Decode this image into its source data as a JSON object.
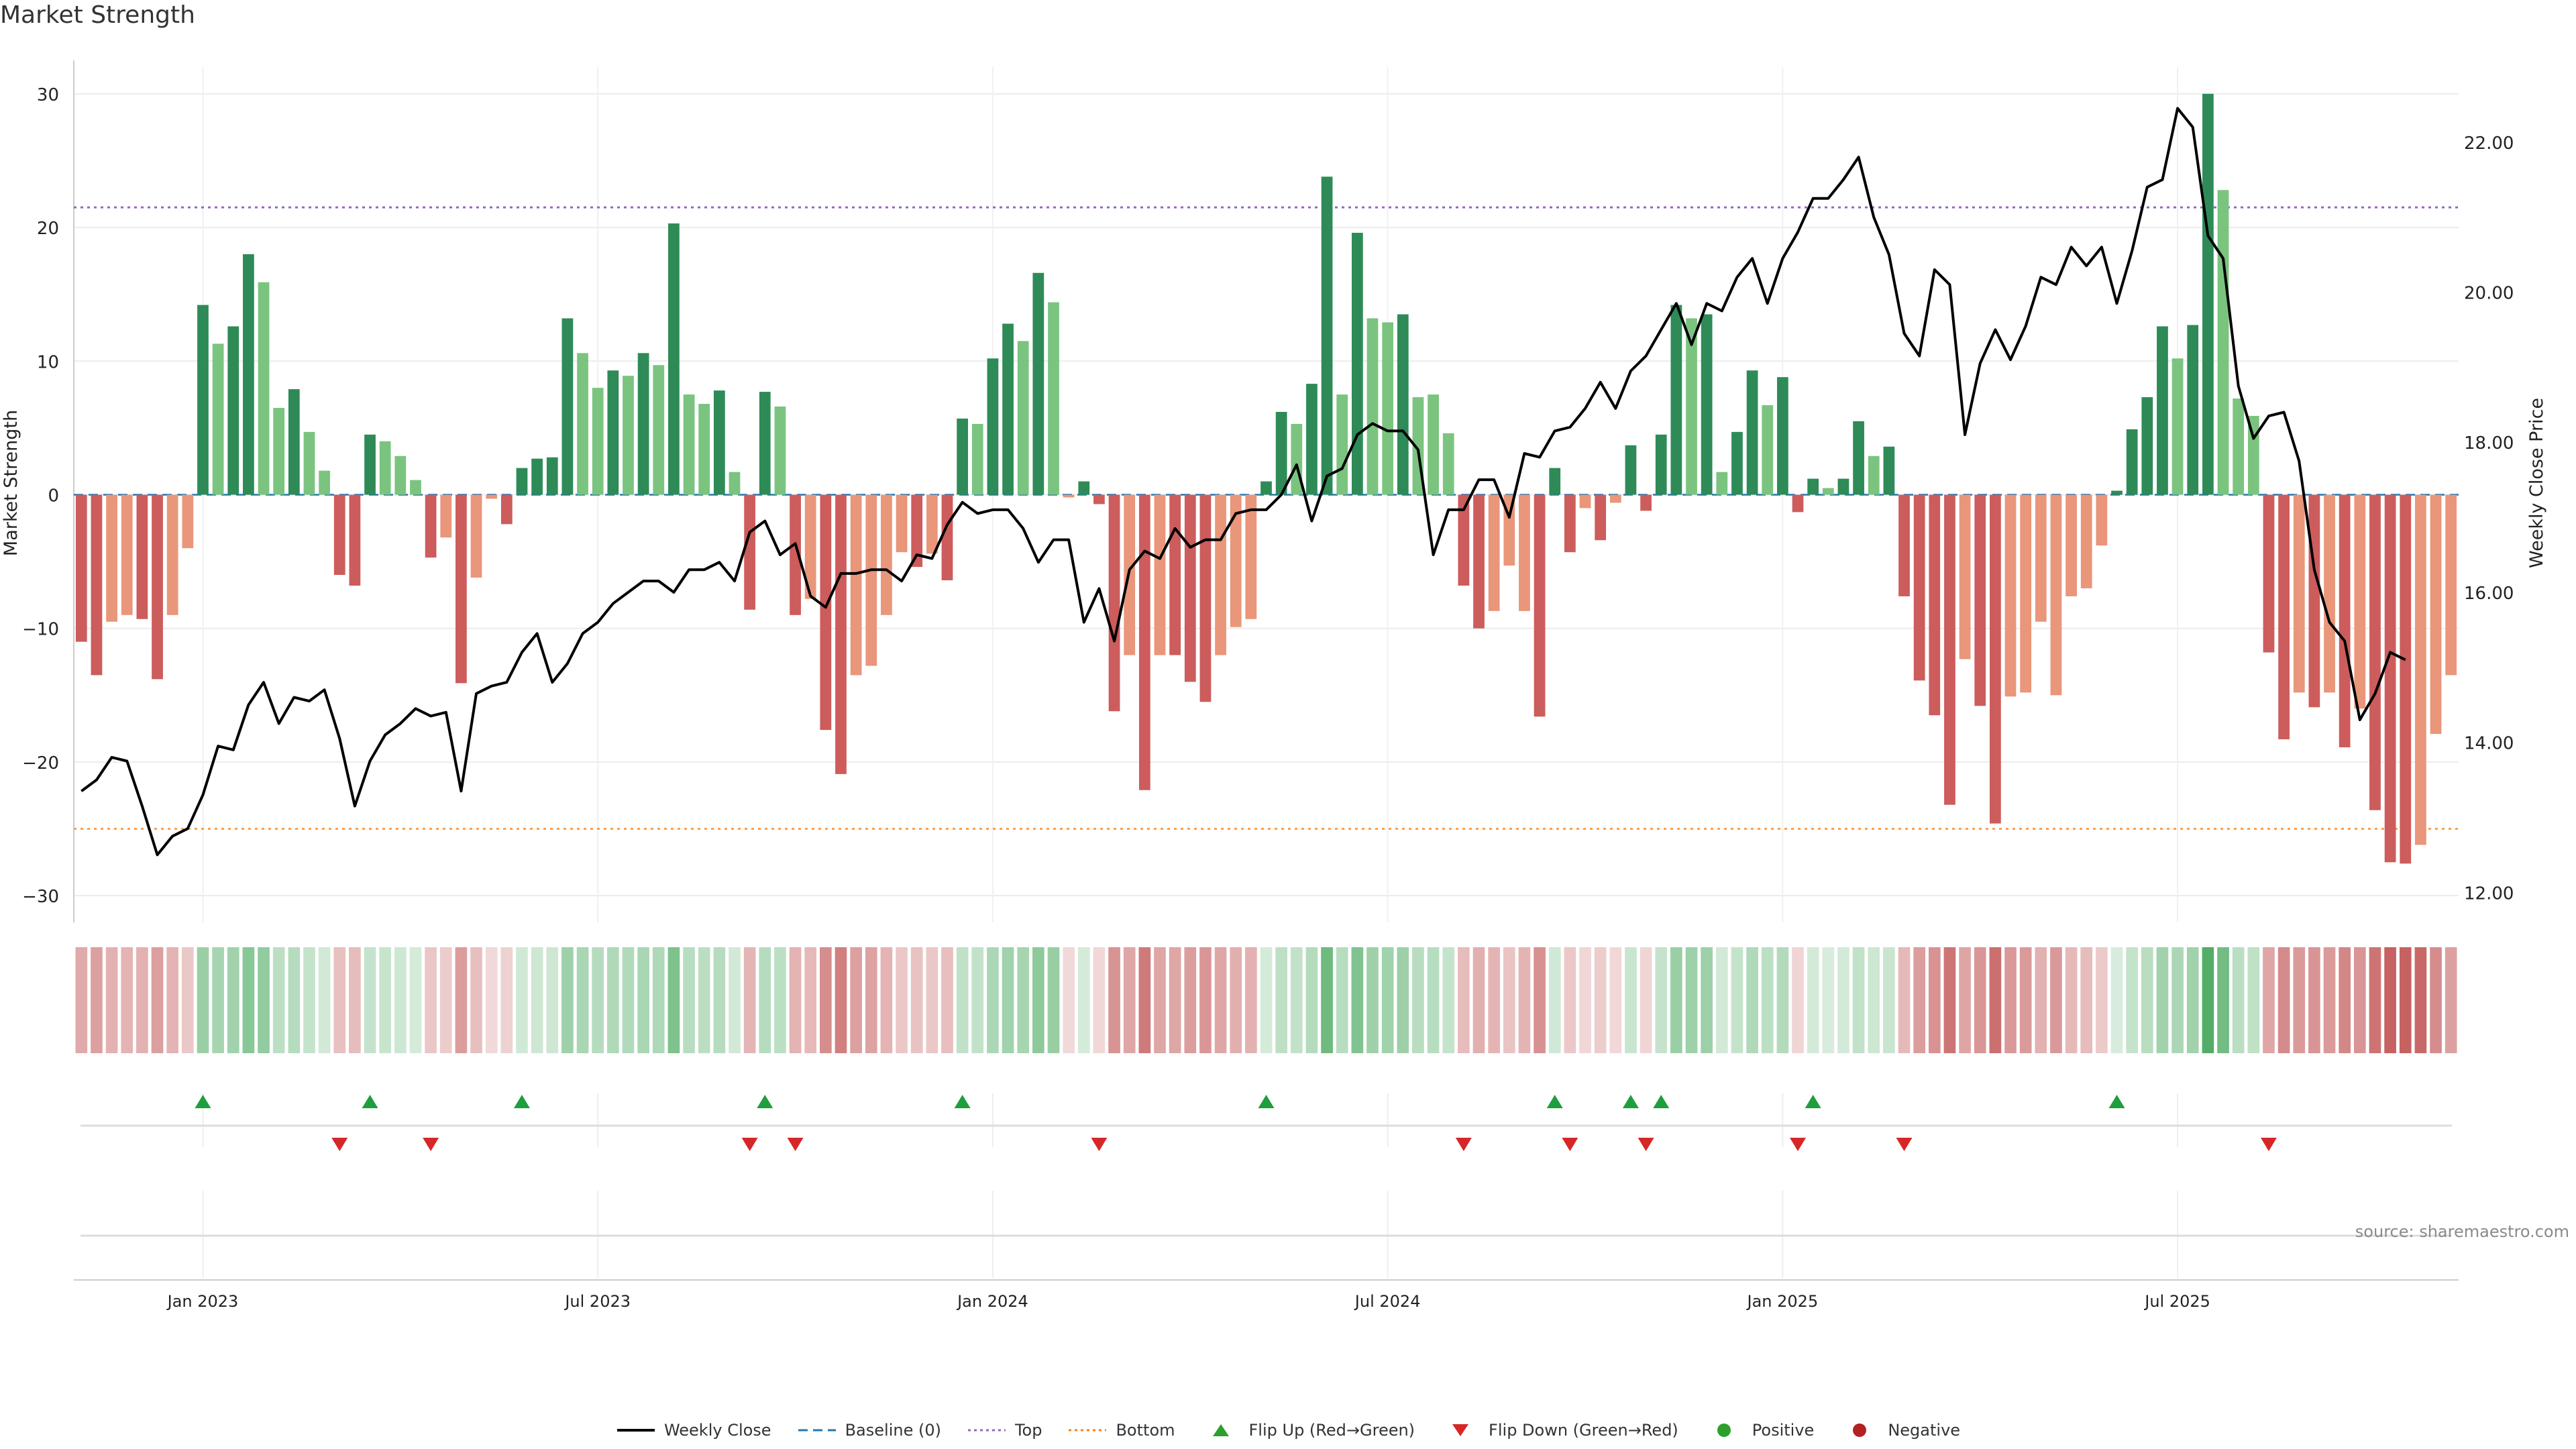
{
  "page": {
    "title": "Market Strength",
    "source": "source: sharemaestro.com"
  },
  "legend": [
    {
      "key": "close",
      "label": "Weekly Close",
      "color": "#000000",
      "style": "line"
    },
    {
      "key": "baseline",
      "label": "Baseline (0)",
      "color": "#1f77b4",
      "style": "dashed"
    },
    {
      "key": "top",
      "label": "Top",
      "color": "#9467bd",
      "style": "dotted"
    },
    {
      "key": "bottom",
      "label": "Bottom",
      "color": "#ff7f0e",
      "style": "dotted"
    },
    {
      "key": "flip_up",
      "label": "Flip Up (Red→Green)",
      "color": "#2ca02c",
      "style": "triangle-up"
    },
    {
      "key": "flip_down",
      "label": "Flip Down (Green→Red)",
      "color": "#d62728",
      "style": "triangle-down"
    },
    {
      "key": "positive",
      "label": "Positive",
      "color": "#2ca02c",
      "style": "circle"
    },
    {
      "key": "negative",
      "label": "Negative",
      "color": "#b22222",
      "style": "circle"
    }
  ],
  "colors": {
    "pos_strong": "#2e8b57",
    "pos_weak": "#7bc47f",
    "neg_strong": "#cd5c5c",
    "neg_weak": "#e9967a",
    "price": "#000000",
    "top_line": "#9467bd",
    "bottom_line": "#ff9f4a",
    "baseline": "#1f77b4",
    "flip_up": "#1e9e3e",
    "flip_down": "#d62728"
  },
  "chart_data": {
    "type": "bar",
    "title": "Market Strength",
    "ylabel": "Market Strength",
    "y2label": "Weekly Close Price",
    "ylim": [
      -32,
      32
    ],
    "y2lim": [
      11.6,
      23.0
    ],
    "yticks": [
      30,
      20,
      10,
      0,
      -10,
      -20,
      -30
    ],
    "ytick_labels": [
      "30",
      "20",
      "10",
      "0",
      "−10",
      "−20",
      "−30"
    ],
    "y2ticks": [
      22,
      20,
      18,
      16,
      14,
      12
    ],
    "y2tick_labels": [
      "22.00",
      "20.00",
      "18.00",
      "16.00",
      "14.00",
      "12.00"
    ],
    "x_tick_labels": [
      "Jan 2023",
      "Jul 2023",
      "Jan 2024",
      "Jul 2024",
      "Jan 2025",
      "Jul 2025"
    ],
    "x_tick_weeks": [
      8.5,
      34.5,
      60.5,
      86.5,
      112.5,
      138.5
    ],
    "top_level": 21.5,
    "bottom_level": -25,
    "grid": true,
    "legend_position": "bottom-center",
    "strength": [
      -11,
      -13.5,
      -9.5,
      -9,
      -9.3,
      -13.8,
      -9,
      -4,
      14.2,
      11.3,
      12.6,
      18,
      15.9,
      6.5,
      7.9,
      4.7,
      1.8,
      -6,
      -6.8,
      4.5,
      4,
      2.9,
      1.1,
      -4.7,
      -3.2,
      -14.1,
      -6.2,
      -0.3,
      -2.2,
      2,
      2.7,
      2.8,
      13.2,
      10.6,
      8,
      9.3,
      8.9,
      10.6,
      9.7,
      20.3,
      7.5,
      6.8,
      7.8,
      1.7,
      -8.6,
      7.7,
      6.6,
      -9,
      -7.8,
      -17.6,
      -20.9,
      -13.5,
      -12.8,
      -9,
      -4.3,
      -5.4,
      -4.4,
      -6.4,
      5.7,
      5.3,
      10.2,
      12.8,
      11.5,
      16.6,
      14.4,
      -0.2,
      1,
      -0.7,
      -16.2,
      -12,
      -22.1,
      -12,
      -12,
      -14,
      -15.5,
      -12,
      -9.9,
      -9.3,
      1,
      6.2,
      5.3,
      8.3,
      23.8,
      7.5,
      19.6,
      13.2,
      12.9,
      13.5,
      7.3,
      7.5,
      4.6,
      -6.8,
      -10,
      -8.7,
      -5.3,
      -8.7,
      -16.6,
      2,
      -4.3,
      -1,
      -3.4,
      -0.6,
      3.7,
      -1.2,
      4.5,
      14.2,
      13.2,
      13.5,
      1.7,
      4.7,
      9.3,
      6.7,
      8.8,
      -1.3,
      1.2,
      0.5,
      1.2,
      5.5,
      2.9,
      3.6,
      -7.6,
      -13.9,
      -16.5,
      -23.2,
      -12.3,
      -15.8,
      -24.6,
      -15.1,
      -14.8,
      -9.5,
      -15,
      -7.6,
      -7,
      -3.8,
      0.3,
      4.9,
      7.3,
      12.6,
      10.2,
      12.7,
      30,
      22.8,
      7.2,
      5.9,
      -11.8,
      -18.3,
      -14.8,
      -15.9,
      -14.8,
      -18.9,
      -16,
      -23.6,
      -27.5,
      -27.6,
      -26.2,
      -17.9,
      -13.5
    ],
    "intensity_class": [
      "ns",
      "ns",
      "nw",
      "nw",
      "ns",
      "ns",
      "nw",
      "nw",
      "ps",
      "pw",
      "ps",
      "ps",
      "pw",
      "pw",
      "ps",
      "pw",
      "pw",
      "ns",
      "ns",
      "ps",
      "pw",
      "pw",
      "pw",
      "ns",
      "nw",
      "ns",
      "nw",
      "nw",
      "ns",
      "ps",
      "ps",
      "ps",
      "ps",
      "pw",
      "pw",
      "ps",
      "pw",
      "ps",
      "pw",
      "ps",
      "pw",
      "pw",
      "ps",
      "pw",
      "ns",
      "ps",
      "pw",
      "ns",
      "nw",
      "ns",
      "ns",
      "nw",
      "nw",
      "nw",
      "nw",
      "ns",
      "nw",
      "ns",
      "ps",
      "pw",
      "ps",
      "ps",
      "pw",
      "ps",
      "pw",
      "nw",
      "ps",
      "ns",
      "ns",
      "nw",
      "ns",
      "nw",
      "ns",
      "ns",
      "ns",
      "nw",
      "nw",
      "nw",
      "ps",
      "ps",
      "pw",
      "ps",
      "ps",
      "pw",
      "ps",
      "pw",
      "pw",
      "ps",
      "pw",
      "pw",
      "pw",
      "ns",
      "ns",
      "nw",
      "nw",
      "nw",
      "ns",
      "ps",
      "ns",
      "nw",
      "ns",
      "nw",
      "ps",
      "ns",
      "ps",
      "ps",
      "pw",
      "ps",
      "pw",
      "ps",
      "ps",
      "pw",
      "ps",
      "ns",
      "ps",
      "pw",
      "ps",
      "ps",
      "pw",
      "ps",
      "ns",
      "ns",
      "ns",
      "ns",
      "nw",
      "ns",
      "ns",
      "nw",
      "nw",
      "nw",
      "nw",
      "nw",
      "nw",
      "nw",
      "ps",
      "ps",
      "ps",
      "ps",
      "pw",
      "ps",
      "ps",
      "pw",
      "pw",
      "pw",
      "ns",
      "ns",
      "nw",
      "ns",
      "nw",
      "ns",
      "nw",
      "ns",
      "ns",
      "ns",
      "nw",
      "nw",
      "nw"
    ],
    "close": [
      13.35,
      13.5,
      13.8,
      13.75,
      13.15,
      12.5,
      12.75,
      12.85,
      13.3,
      13.95,
      13.9,
      14.5,
      14.8,
      14.25,
      14.6,
      14.55,
      14.7,
      14.05,
      13.15,
      13.75,
      14.1,
      14.25,
      14.45,
      14.35,
      14.4,
      13.35,
      14.65,
      14.75,
      14.8,
      15.2,
      15.45,
      14.8,
      15.05,
      15.45,
      15.6,
      15.85,
      16,
      16.15,
      16.15,
      16,
      16.3,
      16.3,
      16.4,
      16.15,
      16.8,
      16.95,
      16.5,
      16.65,
      15.95,
      15.8,
      16.25,
      16.25,
      16.3,
      16.3,
      16.15,
      16.5,
      16.45,
      16.9,
      17.2,
      17.05,
      17.1,
      17.1,
      16.85,
      16.4,
      16.7,
      16.7,
      15.6,
      16.05,
      15.35,
      16.3,
      16.55,
      16.45,
      16.85,
      16.6,
      16.7,
      16.7,
      17.05,
      17.1,
      17.1,
      17.3,
      17.7,
      16.95,
      17.55,
      17.65,
      18.1,
      18.25,
      18.15,
      18.15,
      17.9,
      16.5,
      17.1,
      17.1,
      17.5,
      17.5,
      17,
      17.85,
      17.8,
      18.15,
      18.2,
      18.45,
      18.8,
      18.45,
      18.95,
      19.15,
      19.5,
      19.85,
      19.3,
      19.85,
      19.75,
      20.2,
      20.45,
      19.85,
      20.45,
      20.8,
      21.25,
      21.25,
      21.5,
      21.8,
      21,
      20.5,
      19.45,
      19.15,
      20.3,
      20.1,
      18.1,
      19.05,
      19.5,
      19.1,
      19.55,
      20.2,
      20.1,
      20.6,
      20.35,
      20.6,
      19.85,
      20.55,
      21.4,
      21.5,
      22.45,
      22.2,
      20.75,
      20.45,
      18.75,
      18.05,
      18.35,
      18.4,
      17.75,
      16.3,
      15.6,
      15.35,
      14.3,
      14.65,
      15.2,
      15.1
    ],
    "flip_up": [
      8,
      19,
      29,
      45,
      58,
      78,
      97,
      102,
      104,
      114,
      134
    ],
    "flip_down": [
      17,
      23,
      44,
      47,
      67,
      91,
      98,
      103,
      113,
      120,
      144
    ]
  }
}
